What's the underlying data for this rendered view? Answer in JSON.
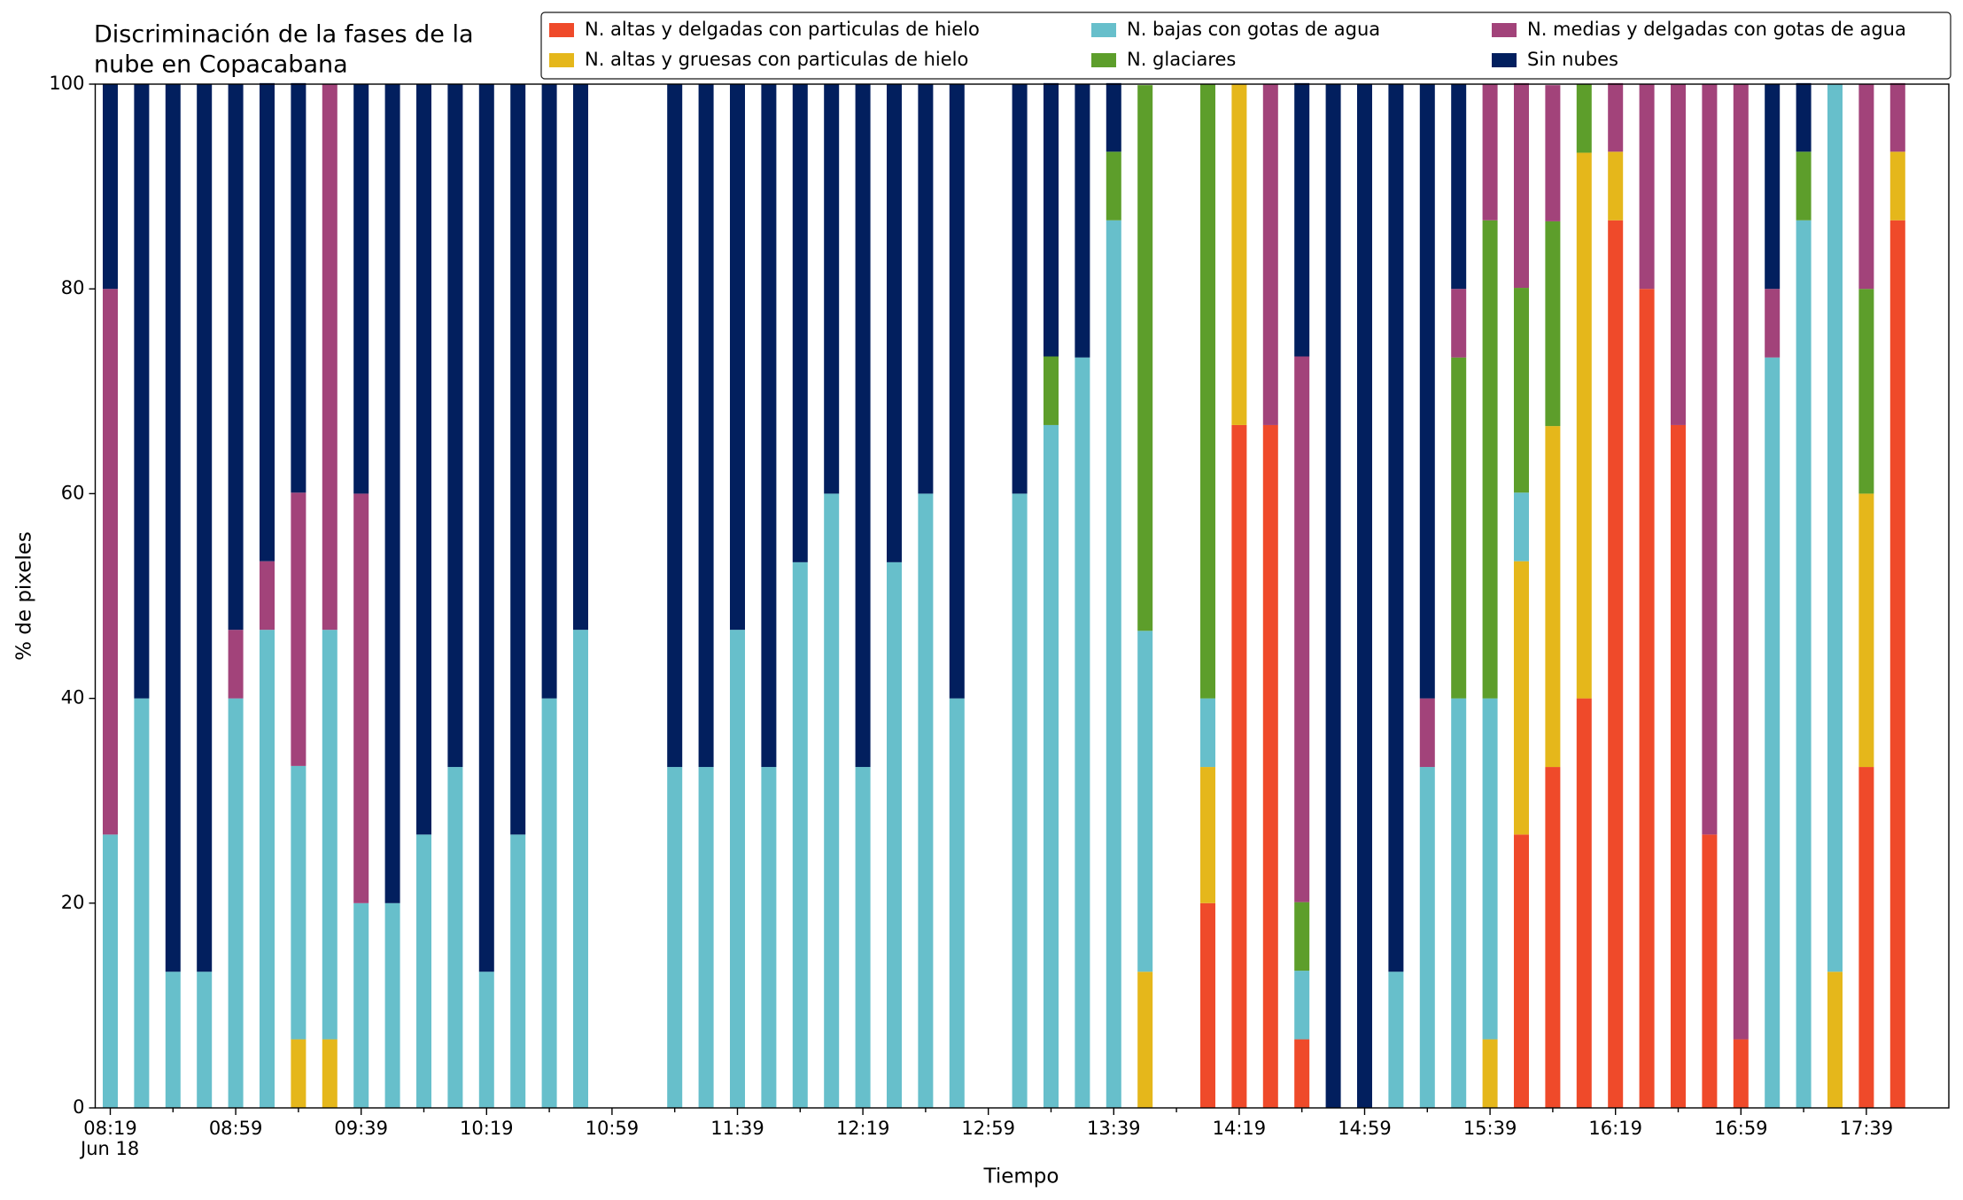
{
  "chart_data": {
    "type": "stacked_bar",
    "title": [
      "Discriminación de la fases de la",
      "nube en Copacabana"
    ],
    "x_label": "Tiempo",
    "y_label": "% de pixeles",
    "date_label": "Jun 18",
    "categories": [
      "08:19",
      null,
      null,
      null,
      "08:59",
      null,
      null,
      null,
      "09:39",
      null,
      null,
      null,
      "10:19",
      null,
      null,
      null,
      "10:59",
      null,
      null,
      null,
      "11:39",
      null,
      null,
      null,
      "12:19",
      null,
      null,
      null,
      "12:59",
      null,
      null,
      null,
      "13:39",
      null,
      null,
      null,
      "14:19",
      null,
      null,
      null,
      "14:59",
      null,
      null,
      null,
      "15:39",
      null,
      null,
      null,
      "16:19",
      null,
      null,
      null,
      "16:59",
      null,
      null,
      null,
      "17:39",
      null
    ],
    "ylim": [
      0,
      100
    ],
    "yticks": [
      0,
      20,
      40,
      60,
      80,
      100
    ],
    "series": [
      {
        "name": "N. altas y delgadas con particulas de hielo",
        "color": "#ef4a2a",
        "values": [
          0,
          0,
          0,
          0,
          0,
          0,
          0,
          0,
          0,
          0,
          0,
          0,
          0,
          0,
          0,
          0,
          0,
          0,
          0,
          0,
          0,
          0,
          0,
          0,
          0,
          0,
          0,
          0,
          0,
          0,
          0,
          0,
          0,
          0,
          0,
          20,
          66.7,
          66.7,
          6.7,
          0,
          0,
          0,
          0,
          0,
          0,
          26.7,
          33.3,
          40,
          86.7,
          80,
          66.7,
          26.7,
          6.7,
          0,
          0,
          0,
          33.3,
          86.7
        ]
      },
      {
        "name": "N. altas y gruesas con particulas de hielo",
        "color": "#e5b71b",
        "values": [
          0,
          0,
          0,
          0,
          0,
          0,
          6.7,
          6.7,
          0,
          0,
          0,
          0,
          0,
          0,
          0,
          0,
          0,
          0,
          0,
          0,
          0,
          0,
          0,
          0,
          0,
          0,
          0,
          0,
          0,
          0,
          0,
          0,
          0,
          13.3,
          0,
          13.3,
          33.3,
          0,
          0,
          0,
          0,
          0,
          0,
          0,
          6.7,
          26.7,
          33.3,
          53.3,
          6.7,
          0,
          0,
          0,
          0,
          0,
          0,
          13.3,
          26.7,
          6.7
        ]
      },
      {
        "name": "N. bajas con gotas de agua",
        "color": "#67bfcb",
        "values": [
          26.7,
          40,
          13.3,
          13.3,
          40,
          46.7,
          26.7,
          40,
          20,
          20,
          26.7,
          33.3,
          13.3,
          26.7,
          40,
          46.7,
          0,
          0,
          33.3,
          33.3,
          46.7,
          33.3,
          53.3,
          60,
          33.3,
          53.3,
          60,
          40,
          0,
          60,
          66.7,
          73.3,
          86.7,
          33.3,
          0,
          6.7,
          0,
          0,
          6.7,
          0,
          0,
          13.3,
          33.3,
          40,
          33.3,
          6.7,
          0,
          0,
          0,
          0,
          0,
          0,
          0,
          73.3,
          86.7,
          86.7,
          0,
          0
        ]
      },
      {
        "name": "N. glaciares",
        "color": "#5d9e2b",
        "values": [
          0,
          0,
          0,
          0,
          0,
          0,
          0,
          0,
          0,
          0,
          0,
          0,
          0,
          0,
          0,
          0,
          0,
          0,
          0,
          0,
          0,
          0,
          0,
          0,
          0,
          0,
          0,
          0,
          0,
          0,
          6.7,
          0,
          6.7,
          53.3,
          0,
          60,
          0,
          0,
          6.7,
          0,
          0,
          0,
          0,
          33.3,
          46.7,
          20,
          20,
          6.7,
          0,
          0,
          0,
          0,
          0,
          0,
          6.7,
          0,
          20,
          0
        ]
      },
      {
        "name": "N. medias y delgadas con gotas de agua",
        "color": "#a2437a",
        "values": [
          53.3,
          0,
          0,
          0,
          6.7,
          6.7,
          26.7,
          53.3,
          40,
          0,
          0,
          0,
          0,
          0,
          0,
          0,
          0,
          0,
          0,
          0,
          0,
          0,
          0,
          0,
          0,
          0,
          0,
          0,
          0,
          0,
          0,
          0,
          0,
          0,
          0,
          0,
          0,
          33.3,
          53.3,
          0,
          0,
          0,
          6.7,
          6.7,
          13.3,
          20,
          13.3,
          0,
          6.7,
          20,
          33.3,
          73.3,
          93.3,
          6.7,
          0,
          0,
          20,
          6.7
        ]
      },
      {
        "name": "Sin nubes",
        "color": "#021f5e",
        "values": [
          20,
          60,
          86.7,
          86.7,
          53.3,
          46.7,
          40,
          0,
          40,
          80,
          73.3,
          66.7,
          86.7,
          73.3,
          60,
          53.3,
          0,
          0,
          66.7,
          66.7,
          53.3,
          66.7,
          46.7,
          40,
          66.7,
          46.7,
          40,
          60,
          0,
          40,
          26.7,
          26.7,
          6.7,
          0,
          0,
          0,
          0,
          0,
          26.7,
          100,
          100,
          86.7,
          60,
          20,
          0,
          0,
          0,
          0,
          0,
          0,
          0,
          0,
          0,
          20,
          6.7,
          0,
          0,
          0
        ]
      }
    ]
  }
}
